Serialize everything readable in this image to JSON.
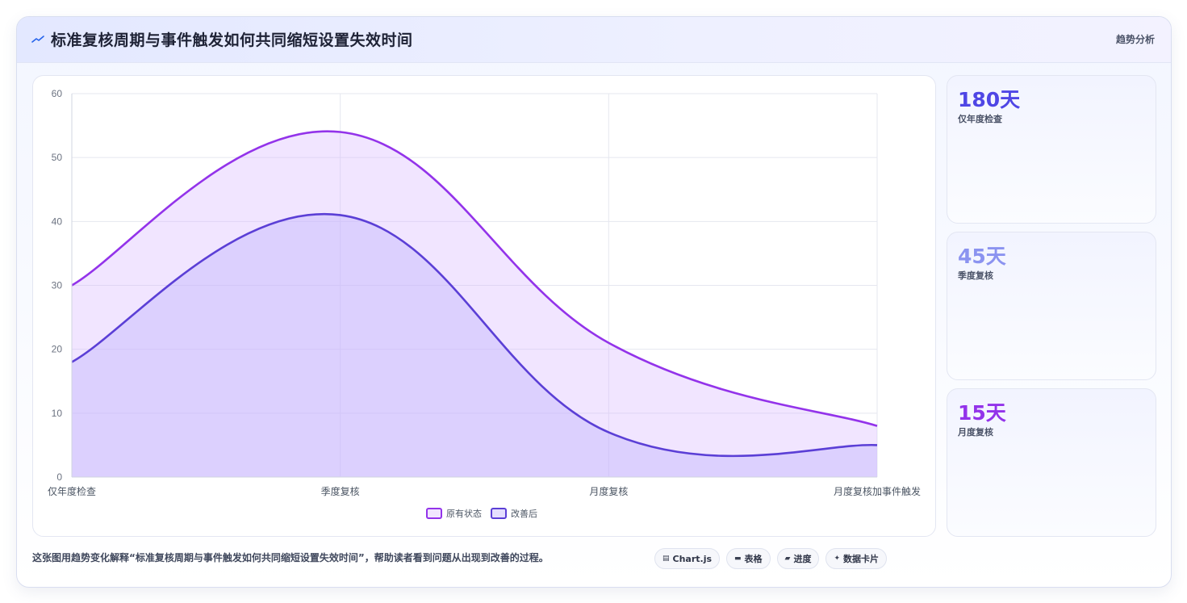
{
  "header": {
    "title": "标准复核周期与事件触发如何共同缩短设置失效时间",
    "tag": "趋势分析",
    "icon": "trend-line-icon"
  },
  "chart_data": {
    "type": "area",
    "categories": [
      "仅年度检查",
      "季度复核",
      "月度复核",
      "月度复核加事件触发"
    ],
    "series": [
      {
        "name": "原有状态",
        "values": [
          30,
          54,
          21,
          8
        ],
        "color": "#9333ea",
        "fill": "rgba(216,180,254,0.35)"
      },
      {
        "name": "改善后",
        "values": [
          18,
          41,
          7,
          5
        ],
        "color": "#5b3fd6",
        "fill": "rgba(196,181,253,0.45)"
      }
    ],
    "ylim": [
      0,
      60
    ],
    "yticks": [
      0,
      10,
      20,
      30,
      40,
      50,
      60
    ],
    "grid": true,
    "legend": "bottom"
  },
  "stats": [
    {
      "value": "180天",
      "label": "仅年度检查",
      "color": "#4f46e5"
    },
    {
      "value": "45天",
      "label": "季度复核",
      "color": "#8b93f0"
    },
    {
      "value": "15天",
      "label": "月度复核",
      "color": "#9333ea"
    }
  ],
  "footer": {
    "text": "这张图用趋势变化解释“标准复核周期与事件触发如何共同缩短设置失效时间”，帮助读者看到问题从出现到改善的过程。",
    "chips": [
      {
        "icon": "▤",
        "label": "Chart.js"
      },
      {
        "icon": "▬",
        "label": "表格"
      },
      {
        "icon": "▰",
        "label": "进度"
      },
      {
        "icon": "✦",
        "label": "数据卡片"
      }
    ]
  }
}
